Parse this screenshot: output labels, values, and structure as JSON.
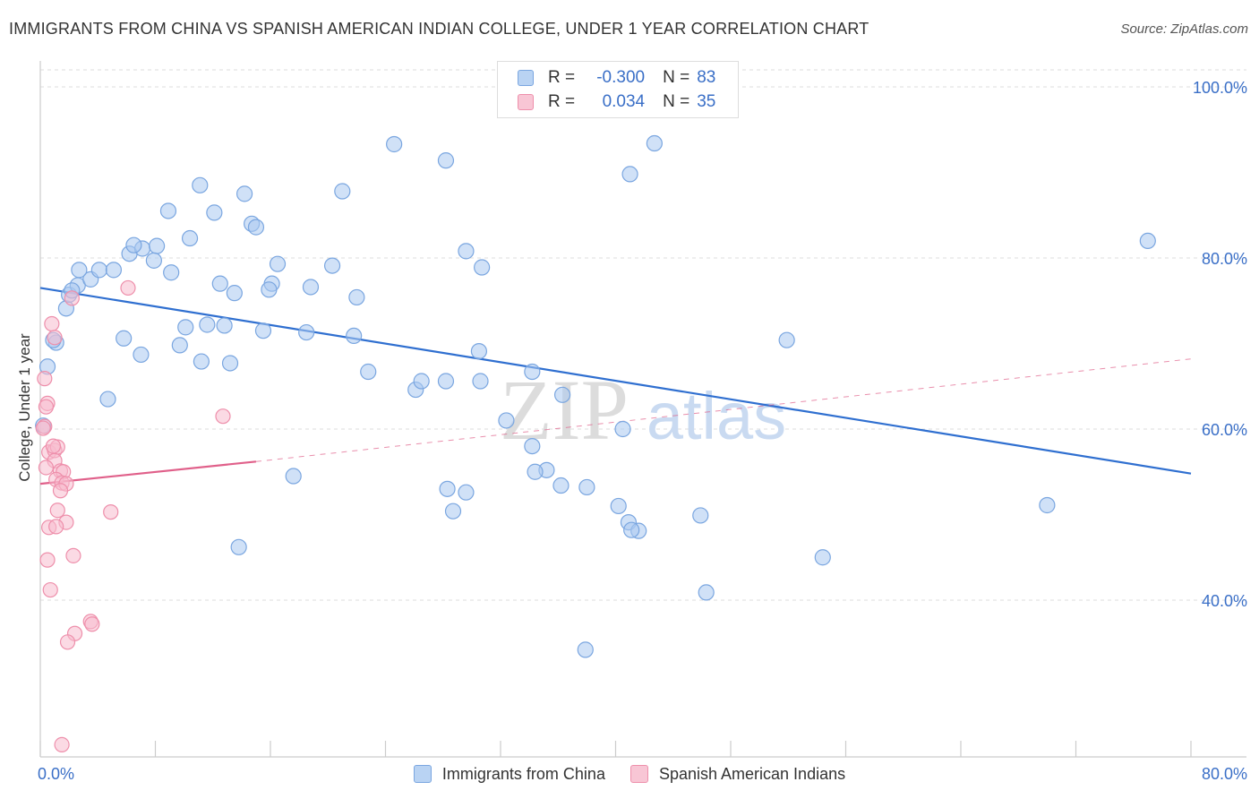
{
  "title": "IMMIGRANTS FROM CHINA VS SPANISH AMERICAN INDIAN COLLEGE, UNDER 1 YEAR CORRELATION CHART",
  "source": "Source: ZipAtlas.com",
  "watermark": {
    "zip": "ZIP",
    "atlas": "atlas"
  },
  "legend": {
    "rows": [
      {
        "r_label": "R =",
        "r_value": "-0.300",
        "n_label": "N =",
        "n_value": "83"
      },
      {
        "r_label": "R =",
        "r_value": "0.034",
        "n_label": "N =",
        "n_value": "35"
      }
    ]
  },
  "colors": {
    "blue_fill": "#aac8f0",
    "blue_stroke": "#7aa6e0",
    "blue_line": "#2f6fd0",
    "pink_fill": "#f7bccd",
    "pink_stroke": "#ee8fab",
    "pink_line": "#e0608a",
    "tick_label": "#3a6fc7",
    "grid": "#dddddd"
  },
  "chart_data": {
    "type": "scatter",
    "title": "IMMIGRANTS FROM CHINA VS SPANISH AMERICAN INDIAN COLLEGE, UNDER 1 YEAR CORRELATION CHART",
    "xlabel": "",
    "ylabel": "College, Under 1 year",
    "xlim": [
      0,
      80
    ],
    "ylim": [
      20,
      102
    ],
    "x_tick_labels": [
      {
        "value": 0,
        "label": "0.0%"
      },
      {
        "value": 80,
        "label": "80.0%"
      }
    ],
    "y_ticks": [
      {
        "value": 100,
        "label": "100.0%"
      },
      {
        "value": 80,
        "label": "80.0%"
      },
      {
        "value": 60,
        "label": "60.0%"
      },
      {
        "value": 40,
        "label": "40.0%"
      }
    ],
    "series": [
      {
        "name": "Immigrants from China",
        "color": "blue",
        "R": -0.3,
        "N": 83,
        "trend": {
          "x": [
            0,
            80
          ],
          "y": [
            76.5,
            54.8
          ],
          "style": "solid"
        },
        "points": [
          [
            0.5,
            67.3
          ],
          [
            0.2,
            60.4
          ],
          [
            1.1,
            70.1
          ],
          [
            1.8,
            74.1
          ],
          [
            2.0,
            75.7
          ],
          [
            2.6,
            76.8
          ],
          [
            3.5,
            77.5
          ],
          [
            2.7,
            78.6
          ],
          [
            4.1,
            78.6
          ],
          [
            5.1,
            78.6
          ],
          [
            6.2,
            80.5
          ],
          [
            7.1,
            81.1
          ],
          [
            8.1,
            81.4
          ],
          [
            6.5,
            81.5
          ],
          [
            7.9,
            79.7
          ],
          [
            9.1,
            78.3
          ],
          [
            10.4,
            82.3
          ],
          [
            8.9,
            85.5
          ],
          [
            11.1,
            88.5
          ],
          [
            12.1,
            85.3
          ],
          [
            14.2,
            87.5
          ],
          [
            14.7,
            84.0
          ],
          [
            15.0,
            83.6
          ],
          [
            16.1,
            77.0
          ],
          [
            16.5,
            79.3
          ],
          [
            12.5,
            77.0
          ],
          [
            13.5,
            75.9
          ],
          [
            15.9,
            76.3
          ],
          [
            18.8,
            76.6
          ],
          [
            20.3,
            79.1
          ],
          [
            22.0,
            75.4
          ],
          [
            21.0,
            87.8
          ],
          [
            24.6,
            93.3
          ],
          [
            28.2,
            91.4
          ],
          [
            30.7,
            78.9
          ],
          [
            29.6,
            80.8
          ],
          [
            2.2,
            76.2
          ],
          [
            0.9,
            70.4
          ],
          [
            5.8,
            70.6
          ],
          [
            7.0,
            68.7
          ],
          [
            9.7,
            69.8
          ],
          [
            10.1,
            71.9
          ],
          [
            11.2,
            67.9
          ],
          [
            11.6,
            72.2
          ],
          [
            12.8,
            72.1
          ],
          [
            13.2,
            67.7
          ],
          [
            15.5,
            71.5
          ],
          [
            18.5,
            71.3
          ],
          [
            21.8,
            70.9
          ],
          [
            22.8,
            66.7
          ],
          [
            26.1,
            64.6
          ],
          [
            26.5,
            65.6
          ],
          [
            28.2,
            65.6
          ],
          [
            30.5,
            69.1
          ],
          [
            30.6,
            65.6
          ],
          [
            32.4,
            61.0
          ],
          [
            34.2,
            66.7
          ],
          [
            36.3,
            64.0
          ],
          [
            42.7,
            93.4
          ],
          [
            41.0,
            89.8
          ],
          [
            40.5,
            60.0
          ],
          [
            34.2,
            58.0
          ],
          [
            35.2,
            55.2
          ],
          [
            34.4,
            55.0
          ],
          [
            36.2,
            53.4
          ],
          [
            38.0,
            53.2
          ],
          [
            28.3,
            53.0
          ],
          [
            29.6,
            52.6
          ],
          [
            28.7,
            50.4
          ],
          [
            40.9,
            49.1
          ],
          [
            37.9,
            34.2
          ],
          [
            45.9,
            49.9
          ],
          [
            41.6,
            48.1
          ],
          [
            41.1,
            48.2
          ],
          [
            40.2,
            51.0
          ],
          [
            54.4,
            45.0
          ],
          [
            51.9,
            70.4
          ],
          [
            46.3,
            40.9
          ],
          [
            70.0,
            51.1
          ],
          [
            77.0,
            82.0
          ],
          [
            4.7,
            63.5
          ],
          [
            17.6,
            54.5
          ],
          [
            13.8,
            46.2
          ]
        ]
      },
      {
        "name": "Spanish American Indians",
        "color": "pink",
        "R": 0.034,
        "N": 35,
        "trend": {
          "x": [
            0,
            15
          ],
          "y": [
            53.6,
            56.2
          ],
          "style": "solid",
          "dashed_extension": {
            "x": [
              15,
              80
            ],
            "y": [
              56.2,
              68.2
            ]
          }
        },
        "points": [
          [
            0.3,
            65.9
          ],
          [
            0.5,
            63.0
          ],
          [
            0.4,
            62.6
          ],
          [
            0.3,
            60.3
          ],
          [
            0.6,
            57.3
          ],
          [
            1.0,
            57.5
          ],
          [
            1.2,
            57.9
          ],
          [
            1.0,
            56.3
          ],
          [
            0.4,
            55.5
          ],
          [
            1.4,
            55.1
          ],
          [
            1.6,
            55.0
          ],
          [
            1.1,
            54.1
          ],
          [
            1.5,
            53.7
          ],
          [
            1.8,
            53.6
          ],
          [
            1.2,
            50.5
          ],
          [
            1.8,
            49.1
          ],
          [
            0.6,
            48.5
          ],
          [
            1.1,
            48.6
          ],
          [
            0.5,
            44.7
          ],
          [
            2.3,
            45.2
          ],
          [
            0.7,
            41.2
          ],
          [
            2.4,
            36.1
          ],
          [
            1.9,
            35.1
          ],
          [
            3.5,
            37.5
          ],
          [
            3.6,
            37.2
          ],
          [
            4.9,
            50.3
          ],
          [
            6.1,
            76.5
          ],
          [
            2.2,
            75.3
          ],
          [
            0.8,
            72.3
          ],
          [
            1.0,
            70.7
          ],
          [
            12.7,
            61.5
          ],
          [
            1.5,
            23.1
          ],
          [
            0.2,
            60.1
          ],
          [
            0.9,
            58.0
          ],
          [
            1.4,
            52.8
          ]
        ]
      }
    ]
  }
}
